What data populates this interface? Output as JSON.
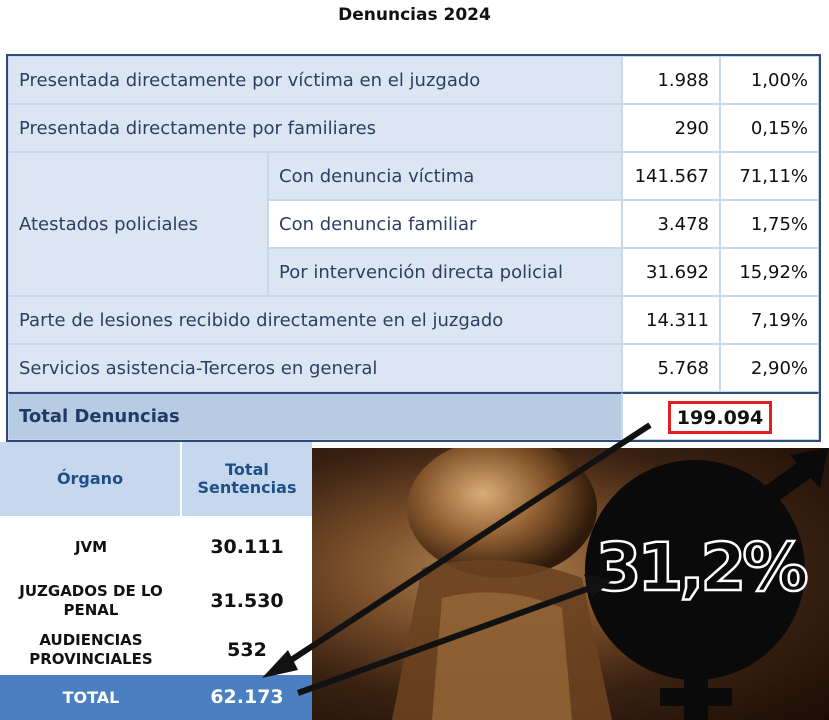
{
  "chart_data": {
    "type": "table",
    "title": "Denuncias 2024",
    "denuncias": [
      {
        "label": "Presentada directamente por víctima en el juzgado",
        "value": "1.988",
        "pct": "1,00%"
      },
      {
        "label": "Presentada directamente por familiares",
        "value": "290",
        "pct": "0,15%"
      },
      {
        "group": "Atestados policiales",
        "label": "Con denuncia víctima",
        "value": "141.567",
        "pct": "71,11%"
      },
      {
        "group": "Atestados policiales",
        "label": "Con denuncia familiar",
        "value": "3.478",
        "pct": "1,75%"
      },
      {
        "group": "Atestados policiales",
        "label": "Por intervención directa policial",
        "value": "31.692",
        "pct": "15,92%"
      },
      {
        "label": "Parte de lesiones recibido directamente en el juzgado",
        "value": "14.311",
        "pct": "7,19%"
      },
      {
        "label": "Servicios asistencia-Terceros en general",
        "value": "5.768",
        "pct": "2,90%"
      }
    ],
    "atestados_label": "Atestados policiales",
    "total_label": "Total Denuncias",
    "total_value": "199.094",
    "sentencias": {
      "headers": [
        "Órgano",
        "Total Sentencias"
      ],
      "rows": [
        {
          "organo": "JVM",
          "total": "30.111"
        },
        {
          "organo": "JUZGADOS DE LO PENAL",
          "total": "31.530"
        },
        {
          "organo": "AUDIENCIAS PROVINCIALES",
          "total": "532"
        }
      ],
      "total_label": "TOTAL",
      "total_value": "62.173"
    },
    "highlight_percent": "31,2%"
  },
  "colors": {
    "border": "#2b4a7a",
    "light_blue": "#dce6f2",
    "total_blue": "#4a7fc1",
    "red": "#e02020"
  },
  "icons": {
    "gender_symbol": "gender-symbol-icon"
  }
}
